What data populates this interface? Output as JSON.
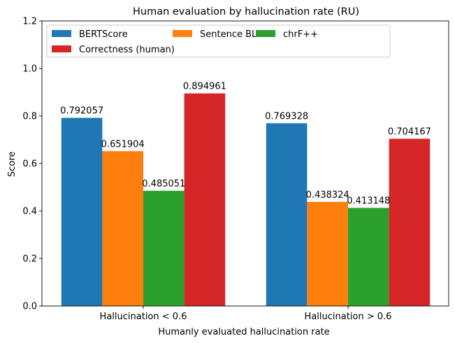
{
  "chart_data": {
    "type": "bar",
    "title": "Human evaluation by hallucination rate (RU)",
    "xlabel": "Humanly evaluated hallucination rate",
    "ylabel": "Score",
    "ylim": [
      0,
      1.2
    ],
    "yticks": [
      "0.0",
      "0.2",
      "0.4",
      "0.6",
      "0.8",
      "1.0",
      "1.2"
    ],
    "categories": [
      "Hallucination < 0.6",
      "Hallucination > 0.6"
    ],
    "series": [
      {
        "name": "BERTScore",
        "color": "#1f77b4",
        "values": [
          0.792057,
          0.769328
        ],
        "labels": [
          "0.792057",
          "0.769328"
        ]
      },
      {
        "name": "Sentence BLEU",
        "color": "#ff7f0e",
        "values": [
          0.651904,
          0.438324
        ],
        "labels": [
          "0.651904",
          "0.438324"
        ]
      },
      {
        "name": "chrF++",
        "color": "#2ca02c",
        "values": [
          0.485051,
          0.413148
        ],
        "labels": [
          "0.485051",
          "0.413148"
        ]
      },
      {
        "name": "Correctness (human)",
        "color": "#d62728",
        "values": [
          0.894961,
          0.704167
        ],
        "labels": [
          "0.894961",
          "0.704167"
        ]
      }
    ],
    "legend": {
      "position": "top-left",
      "columns": 3
    },
    "grid": false
  }
}
